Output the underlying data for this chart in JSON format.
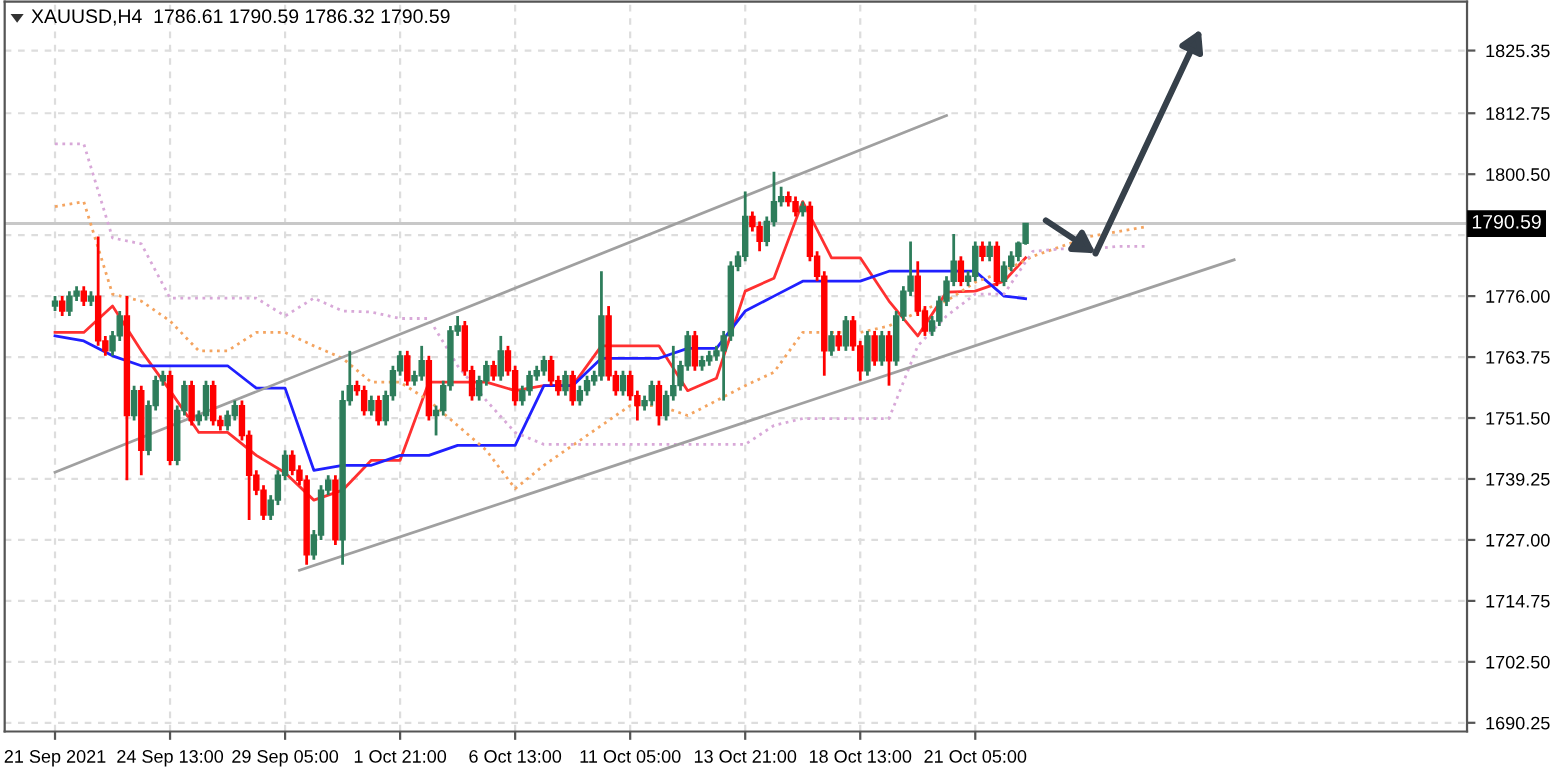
{
  "chart_data": {
    "type": "candlestick",
    "title": "XAUUSD,H4  1786.61 1790.59 1786.32 1790.59",
    "categories": [
      "21 Sep 2021",
      null,
      null,
      null,
      null,
      null,
      null,
      null,
      null,
      null,
      null,
      null,
      null,
      null,
      null,
      null,
      "24 Sep 13:00",
      null,
      null,
      null,
      null,
      null,
      null,
      null,
      null,
      null,
      null,
      null,
      null,
      null,
      null,
      null,
      "29 Sep 05:00",
      null,
      null,
      null,
      null,
      null,
      null,
      null,
      null,
      null,
      null,
      null,
      null,
      null,
      null,
      null,
      "1 Oct 21:00",
      null,
      null,
      null,
      null,
      null,
      null,
      null,
      null,
      null,
      null,
      null,
      null,
      null,
      null,
      null,
      "6 Oct 13:00",
      null,
      null,
      null,
      null,
      null,
      null,
      null,
      null,
      null,
      null,
      null,
      null,
      null,
      null,
      null,
      "11 Oct 05:00",
      null,
      null,
      null,
      null,
      null,
      null,
      null,
      null,
      null,
      null,
      null,
      null,
      null,
      null,
      null,
      "13 Oct 21:00",
      null,
      null,
      null,
      null,
      null,
      null,
      null,
      null,
      null,
      null,
      null,
      null,
      null,
      null,
      null,
      "18 Oct 13:00",
      null,
      null,
      null,
      null,
      null,
      null,
      null,
      null,
      null,
      null,
      null,
      null,
      null,
      null,
      null,
      "21 Oct 05:00",
      null,
      null,
      null,
      null,
      null,
      null,
      null,
      null,
      null,
      null,
      null,
      null,
      null,
      null,
      null,
      null,
      null,
      null,
      null,
      null,
      null,
      null,
      null,
      null,
      null,
      null,
      null,
      null,
      null,
      null,
      null,
      null,
      null,
      null,
      null,
      null,
      null,
      null,
      null,
      null,
      null,
      null,
      null,
      null,
      null,
      null,
      null,
      null,
      null,
      null,
      null,
      null,
      null,
      null,
      null,
      null,
      null,
      null,
      null,
      null,
      null,
      null,
      null,
      null,
      null,
      null,
      null,
      null
    ],
    "colors": [
      "#2e7d5b",
      "#ff0000",
      "#2e7d5b",
      "#2e7d5b",
      "#ff0000",
      "#2e7d5b",
      "#ff0000",
      "#ff0000",
      "#2e7d5b",
      "#2e7d5b",
      "#ff0000",
      "#2e7d5b",
      "#ff0000",
      "#2e7d5b",
      "#2e7d5b",
      "#2e7d5b",
      "#ff0000",
      "#2e7d5b",
      "#2e7d5b",
      "#ff0000",
      "#2e7d5b",
      "#2e7d5b",
      "#ff0000",
      "#ff0000",
      "#2e7d5b",
      "#2e7d5b",
      "#ff0000",
      "#ff0000",
      "#ff0000",
      "#ff0000",
      "#2e7d5b",
      "#2e7d5b",
      "#2e7d5b",
      "#ff0000",
      "#ff0000",
      "#ff0000",
      "#2e7d5b",
      "#2e7d5b",
      "#2e7d5b",
      "#ff0000",
      "#2e7d5b",
      "#2e7d5b",
      "#ff0000",
      "#ff0000",
      "#2e7d5b",
      "#ff0000",
      "#2e7d5b",
      "#2e7d5b",
      "#2e7d5b",
      "#ff0000",
      "#2e7d5b",
      "#2e7d5b",
      "#ff0000",
      "#2e7d5b",
      "#2e7d5b",
      "#2e7d5b",
      "#2e7d5b",
      "#ff0000",
      "#ff0000",
      "#2e7d5b",
      "#2e7d5b",
      "#ff0000",
      "#2e7d5b",
      "#ff0000",
      "#ff0000",
      "#2e7d5b",
      "#2e7d5b",
      "#2e7d5b",
      "#2e7d5b",
      "#ff0000",
      "#ff0000",
      "#2e7d5b",
      "#ff0000",
      "#2e7d5b",
      "#2e7d5b",
      "#2e7d5b",
      "#2e7d5b",
      "#ff0000",
      "#ff0000",
      "#2e7d5b",
      "#ff0000",
      "#ff0000",
      "#2e7d5b",
      "#2e7d5b",
      "#ff0000",
      "#2e7d5b",
      "#2e7d5b",
      "#2e7d5b",
      "#2e7d5b",
      "#ff0000",
      "#2e7d5b",
      "#2e7d5b",
      "#2e7d5b",
      "#2e7d5b",
      "#2e7d5b",
      "#2e7d5b",
      "#2e7d5b",
      "#ff0000",
      "#ff0000",
      "#2e7d5b",
      "#2e7d5b",
      "#2e7d5b",
      "#ff0000",
      "#ff0000",
      "#2e7d5b",
      "#ff0000",
      "#ff0000",
      "#ff0000",
      "#2e7d5b",
      "#ff0000",
      "#2e7d5b",
      "#ff0000",
      "#ff0000",
      "#2e7d5b",
      "#ff0000",
      "#2e7d5b",
      "#ff0000",
      "#2e7d5b",
      "#2e7d5b",
      "#2e7d5b",
      "#ff0000",
      "#ff0000",
      "#2e7d5b",
      "#2e7d5b",
      "#2e7d5b",
      "#2e7d5b",
      "#ff0000",
      "#2e7d5b",
      "#2e7d5b",
      "#ff0000",
      "#2e7d5b",
      "#ff0000",
      "#2e7d5b",
      "#2e7d5b",
      "#2e7d5b",
      "#2e7d5b",
      null,
      null,
      null,
      null,
      null,
      null,
      null,
      null,
      null,
      null,
      null,
      null,
      null,
      null,
      null,
      null,
      null,
      null,
      null,
      null,
      null,
      null,
      null,
      null,
      null,
      null,
      null,
      null,
      null,
      null,
      null,
      null,
      null,
      null,
      null,
      null,
      null,
      null,
      null,
      null,
      null,
      null,
      null,
      null,
      null,
      null,
      null,
      null,
      null,
      null,
      null,
      null,
      null,
      null,
      null,
      null,
      null,
      null,
      null,
      null,
      null
    ],
    "ohlc": [
      [
        1774,
        1776,
        1773,
        1775
      ],
      [
        1775,
        1776,
        1772,
        1773
      ],
      [
        1773,
        1777,
        1772,
        1776
      ],
      [
        1776,
        1778,
        1775,
        1777
      ],
      [
        1777,
        1778,
        1774,
        1775
      ],
      [
        1775,
        1777,
        1774,
        1776
      ],
      [
        1776,
        1788,
        1766,
        1767
      ],
      [
        1767,
        1768,
        1764,
        1765
      ],
      [
        1765,
        1769,
        1764,
        1768
      ],
      [
        1768,
        1773,
        1767,
        1772
      ],
      [
        1772,
        1776,
        1739,
        1752
      ],
      [
        1752,
        1758,
        1751,
        1757
      ],
      [
        1757,
        1758,
        1740,
        1745
      ],
      [
        1745,
        1755,
        1744,
        1754
      ],
      [
        1754,
        1760,
        1753,
        1759
      ],
      [
        1759,
        1761,
        1758,
        1760
      ],
      [
        1760,
        1761,
        1742,
        1743
      ],
      [
        1743,
        1754,
        1742,
        1753
      ],
      [
        1753,
        1759,
        1752,
        1758
      ],
      [
        1758,
        1759,
        1750,
        1751
      ],
      [
        1751,
        1753,
        1750,
        1752
      ],
      [
        1752,
        1759,
        1751,
        1758
      ],
      [
        1758,
        1759,
        1750,
        1751
      ],
      [
        1751,
        1752,
        1749,
        1750
      ],
      [
        1750,
        1753,
        1749,
        1752
      ],
      [
        1752,
        1755,
        1751,
        1754
      ],
      [
        1754,
        1755,
        1747,
        1748
      ],
      [
        1748,
        1749,
        1731,
        1740
      ],
      [
        1740,
        1741,
        1736,
        1737
      ],
      [
        1737,
        1738,
        1731,
        1732
      ],
      [
        1732,
        1736,
        1731,
        1735
      ],
      [
        1735,
        1741,
        1734,
        1740
      ],
      [
        1740,
        1745,
        1739,
        1744
      ],
      [
        1744,
        1745,
        1740,
        1741
      ],
      [
        1741,
        1742,
        1738,
        1739
      ],
      [
        1739,
        1740,
        1722,
        1724
      ],
      [
        1724,
        1729,
        1723,
        1728
      ],
      [
        1728,
        1738,
        1727,
        1737
      ],
      [
        1737,
        1740,
        1736,
        1739
      ],
      [
        1739,
        1740,
        1726,
        1727
      ],
      [
        1727,
        1757,
        1722,
        1755
      ],
      [
        1755,
        1765,
        1754,
        1758
      ],
      [
        1758,
        1759,
        1756,
        1757
      ],
      [
        1757,
        1758,
        1752,
        1753
      ],
      [
        1753,
        1756,
        1752,
        1755
      ],
      [
        1755,
        1756,
        1750,
        1751
      ],
      [
        1751,
        1757,
        1750,
        1756
      ],
      [
        1756,
        1762,
        1755,
        1761
      ],
      [
        1761,
        1765,
        1760,
        1764
      ],
      [
        1764,
        1765,
        1758,
        1759
      ],
      [
        1759,
        1761,
        1758,
        1760
      ],
      [
        1760,
        1766,
        1759,
        1763
      ],
      [
        1763,
        1764,
        1751,
        1752
      ],
      [
        1752,
        1754,
        1748,
        1753
      ],
      [
        1753,
        1759,
        1752,
        1758
      ],
      [
        1758,
        1770,
        1757,
        1769
      ],
      [
        1769,
        1772,
        1768,
        1770
      ],
      [
        1770,
        1771,
        1760,
        1761
      ],
      [
        1761,
        1762,
        1755,
        1756
      ],
      [
        1756,
        1760,
        1755,
        1759
      ],
      [
        1759,
        1763,
        1758,
        1762
      ],
      [
        1762,
        1763,
        1759,
        1760
      ],
      [
        1760,
        1768,
        1759,
        1765
      ],
      [
        1765,
        1766,
        1760,
        1761
      ],
      [
        1761,
        1762,
        1754,
        1755
      ],
      [
        1755,
        1758,
        1754,
        1757
      ],
      [
        1757,
        1761,
        1756,
        1760
      ],
      [
        1760,
        1762,
        1759,
        1761
      ],
      [
        1761,
        1764,
        1760,
        1763
      ],
      [
        1763,
        1764,
        1758,
        1759
      ],
      [
        1759,
        1760,
        1756,
        1757
      ],
      [
        1757,
        1761,
        1756,
        1760
      ],
      [
        1760,
        1761,
        1754,
        1755
      ],
      [
        1755,
        1758,
        1754,
        1757
      ],
      [
        1757,
        1760,
        1756,
        1759
      ],
      [
        1759,
        1761,
        1758,
        1760
      ],
      [
        1760,
        1781,
        1759,
        1772
      ],
      [
        1772,
        1774,
        1759,
        1760
      ],
      [
        1760,
        1761,
        1756,
        1757
      ],
      [
        1757,
        1761,
        1756,
        1760
      ],
      [
        1760,
        1761,
        1755,
        1756
      ],
      [
        1756,
        1757,
        1751,
        1754
      ],
      [
        1754,
        1756,
        1753,
        1755
      ],
      [
        1755,
        1759,
        1754,
        1758
      ],
      [
        1758,
        1759,
        1750,
        1752
      ],
      [
        1752,
        1757,
        1751,
        1756
      ],
      [
        1756,
        1766,
        1755,
        1758
      ],
      [
        1758,
        1763,
        1757,
        1762
      ],
      [
        1762,
        1769,
        1761,
        1768
      ],
      [
        1768,
        1769,
        1761,
        1762
      ],
      [
        1762,
        1764,
        1761,
        1763
      ],
      [
        1763,
        1765,
        1762,
        1764
      ],
      [
        1764,
        1766,
        1763,
        1765
      ],
      [
        1765,
        1769,
        1755,
        1768
      ],
      [
        1768,
        1783,
        1767,
        1782
      ],
      [
        1782,
        1785,
        1781,
        1784
      ],
      [
        1784,
        1797,
        1783,
        1792
      ],
      [
        1792,
        1793,
        1789,
        1790
      ],
      [
        1790,
        1791,
        1785,
        1787
      ],
      [
        1787,
        1792,
        1786,
        1791
      ],
      [
        1791,
        1801,
        1790,
        1795
      ],
      [
        1795,
        1798,
        1794,
        1796
      ],
      [
        1796,
        1797,
        1794,
        1795
      ],
      [
        1795,
        1796,
        1792,
        1793
      ],
      [
        1793,
        1795,
        1792,
        1794
      ],
      [
        1794,
        1795,
        1783,
        1784
      ],
      [
        1784,
        1785,
        1779,
        1780
      ],
      [
        1780,
        1781,
        1760,
        1765
      ],
      [
        1765,
        1769,
        1764,
        1768
      ],
      [
        1768,
        1769,
        1765,
        1766
      ],
      [
        1766,
        1772,
        1765,
        1771
      ],
      [
        1771,
        1772,
        1765,
        1766
      ],
      [
        1766,
        1767,
        1759,
        1761
      ],
      [
        1761,
        1769,
        1760,
        1768
      ],
      [
        1768,
        1769,
        1762,
        1763
      ],
      [
        1763,
        1769,
        1762,
        1768
      ],
      [
        1768,
        1769,
        1758,
        1763
      ],
      [
        1763,
        1773,
        1762,
        1772
      ],
      [
        1772,
        1778,
        1771,
        1777
      ],
      [
        1777,
        1787,
        1776,
        1780
      ],
      [
        1780,
        1783,
        1772,
        1773
      ],
      [
        1773,
        1774,
        1768,
        1769
      ],
      [
        1769,
        1772,
        1768,
        1771
      ],
      [
        1771,
        1776,
        1770,
        1775
      ],
      [
        1775,
        1780,
        1774,
        1779
      ],
      [
        1779,
        1788.5,
        1778,
        1783
      ],
      [
        1783,
        1784,
        1778,
        1779
      ],
      [
        1779,
        1781,
        1778,
        1780
      ],
      [
        1780,
        1787,
        1779,
        1786
      ],
      [
        1786,
        1787,
        1783,
        1784
      ],
      [
        1784,
        1787,
        1783,
        1786
      ],
      [
        1786,
        1787,
        1778,
        1779
      ],
      [
        1779,
        1783,
        1778,
        1782
      ],
      [
        1782,
        1785,
        1781,
        1784
      ],
      [
        1784,
        1787,
        1783,
        1786.61
      ],
      [
        1786.61,
        1790.59,
        1786.32,
        1790.59
      ],
      null,
      null,
      null,
      null,
      null,
      null,
      null,
      null,
      null,
      null,
      null,
      null,
      null,
      null,
      null,
      null,
      null,
      null,
      null,
      null,
      null,
      null,
      null,
      null,
      null,
      null,
      null,
      null,
      null,
      null,
      null,
      null,
      null,
      null,
      null,
      null,
      null,
      null,
      null,
      null,
      null,
      null,
      null,
      null,
      null,
      null,
      null,
      null,
      null,
      null,
      null,
      null,
      null,
      null,
      null,
      null,
      null,
      null,
      null,
      null,
      null
    ],
    "series": [
      {
        "type": "line",
        "color": "#ff3030",
        "values": [
          1768.7,
          null,
          null,
          null,
          1768.7,
          null,
          null,
          null,
          1774,
          null,
          null,
          null,
          1765,
          null,
          null,
          null,
          1757,
          null,
          null,
          null,
          1748.6,
          null,
          null,
          null,
          1748.6,
          null,
          null,
          null,
          1744,
          null,
          null,
          null,
          1740.5,
          null,
          null,
          null,
          1735,
          null,
          null,
          null,
          1737,
          null,
          null,
          null,
          1743,
          null,
          null,
          null,
          1743,
          null,
          null,
          null,
          1758.7,
          null,
          null,
          null,
          1758.7,
          null,
          null,
          null,
          1758.7,
          null,
          null,
          null,
          1757,
          null,
          null,
          null,
          1758,
          null,
          null,
          null,
          1758,
          null,
          null,
          null,
          1766,
          null,
          null,
          null,
          1766,
          null,
          null,
          null,
          1766,
          null,
          null,
          null,
          1757,
          null,
          null,
          null,
          1759.5,
          null,
          null,
          null,
          1777,
          null,
          null,
          null,
          1779.6,
          null,
          null,
          null,
          1795,
          null,
          null,
          null,
          1783.7,
          null,
          null,
          null,
          1783.7,
          null,
          null,
          null,
          1775,
          null,
          null,
          null,
          1768,
          null,
          null,
          null,
          1776.8,
          null,
          null,
          null,
          1777,
          null,
          null,
          null,
          1779,
          null,
          null,
          1783.7,
          null,
          null,
          null,
          null,
          null,
          null,
          null,
          null,
          null,
          null,
          null,
          null,
          null,
          null,
          null,
          null,
          null,
          null,
          null,
          null,
          null,
          null,
          null,
          null,
          null,
          null,
          null,
          null,
          null,
          null,
          null,
          null,
          null,
          null,
          null,
          null,
          null,
          null,
          null,
          null,
          null,
          null,
          null,
          null,
          null,
          null,
          null,
          null,
          null,
          null,
          null,
          null,
          null,
          null,
          null,
          null,
          null,
          null,
          null,
          null,
          null
        ]
      },
      {
        "type": "line",
        "color": "#2020ff",
        "values": [
          1768,
          null,
          null,
          null,
          1767,
          null,
          null,
          null,
          1764,
          null,
          null,
          null,
          1762,
          null,
          null,
          null,
          1762,
          null,
          null,
          null,
          1762,
          null,
          null,
          null,
          1762,
          null,
          null,
          null,
          1757.5,
          null,
          null,
          null,
          1757.5,
          null,
          null,
          null,
          1741,
          null,
          null,
          null,
          1742,
          null,
          null,
          null,
          1742,
          null,
          null,
          null,
          1744,
          null,
          null,
          null,
          1744,
          null,
          null,
          null,
          1746,
          null,
          null,
          null,
          1746,
          null,
          null,
          null,
          1746,
          null,
          null,
          null,
          1758,
          null,
          null,
          null,
          1758,
          null,
          null,
          null,
          1763.5,
          null,
          null,
          null,
          1763.5,
          null,
          null,
          null,
          1763.5,
          null,
          null,
          null,
          1765.5,
          null,
          null,
          null,
          1765.5,
          null,
          null,
          null,
          1773,
          null,
          null,
          null,
          1776,
          null,
          null,
          null,
          1779,
          null,
          null,
          null,
          1779,
          null,
          null,
          null,
          1779,
          null,
          null,
          null,
          1781,
          null,
          null,
          null,
          1781,
          null,
          null,
          null,
          1781,
          null,
          null,
          null,
          1781,
          null,
          null,
          null,
          1776,
          null,
          null,
          1775.5,
          null,
          null,
          null,
          null,
          null,
          null,
          null,
          null,
          null,
          null,
          null,
          null,
          null,
          null,
          null,
          null,
          null,
          null,
          null,
          null,
          null,
          null,
          null,
          null,
          null,
          null,
          null,
          null,
          null,
          null,
          null,
          null,
          null,
          null,
          null,
          null,
          null,
          null,
          null,
          null,
          null,
          null,
          null,
          null,
          null,
          null,
          null,
          null,
          null,
          null,
          null,
          null,
          null,
          null,
          null,
          null,
          null,
          null,
          null,
          null,
          null
        ]
      },
      {
        "type": "line",
        "color": "#f4a460",
        "line_style": "dotted",
        "values": [
          1794,
          null,
          null,
          null,
          1795,
          null,
          null,
          null,
          1776.4,
          null,
          null,
          null,
          1775,
          null,
          null,
          null,
          1771,
          null,
          null,
          null,
          1765,
          null,
          null,
          null,
          1765,
          null,
          null,
          null,
          1768.7,
          null,
          null,
          null,
          1768.7,
          null,
          null,
          null,
          1766,
          null,
          null,
          null,
          1763.5,
          null,
          null,
          null,
          1758.7,
          null,
          null,
          null,
          1758.7,
          null,
          null,
          null,
          1755,
          null,
          null,
          null,
          1750,
          null,
          null,
          null,
          1745,
          null,
          null,
          null,
          1737.3,
          null,
          null,
          null,
          1742,
          null,
          null,
          null,
          1746,
          null,
          null,
          null,
          1750,
          null,
          null,
          null,
          1754,
          null,
          null,
          null,
          1754,
          null,
          null,
          null,
          1752,
          null,
          null,
          null,
          1755,
          null,
          null,
          null,
          1758,
          null,
          null,
          null,
          1760.7,
          null,
          null,
          null,
          1768.7,
          null,
          null,
          null,
          1768.7,
          null,
          null,
          null,
          1768.7,
          null,
          null,
          null,
          1770,
          null,
          null,
          null,
          1772.8,
          null,
          null,
          null,
          1775,
          null,
          null,
          null,
          1778.8,
          null,
          null,
          null,
          1781,
          null,
          null,
          null,
          1784,
          null,
          null,
          null,
          1786,
          null,
          null,
          null,
          1788,
          null,
          null,
          null,
          1789,
          null,
          null,
          null,
          1790,
          null,
          null,
          null,
          null,
          null,
          null,
          null,
          null,
          null,
          null,
          null,
          null,
          null,
          null,
          null,
          null,
          null,
          null,
          null,
          null,
          null,
          null,
          null,
          null,
          null,
          null,
          null,
          null,
          null,
          null,
          null,
          null,
          null,
          null,
          null,
          null,
          null,
          null,
          null,
          null,
          null,
          null,
          null,
          null
        ]
      },
      {
        "type": "line",
        "color": "#d8a8d8",
        "line_style": "dotted",
        "values": [
          1806.6,
          null,
          null,
          null,
          1806.6,
          null,
          null,
          null,
          1787.7,
          null,
          null,
          null,
          1786.5,
          null,
          null,
          null,
          1775.6,
          null,
          null,
          null,
          1775.6,
          null,
          null,
          null,
          1775.6,
          null,
          null,
          null,
          1775.6,
          null,
          null,
          null,
          1772,
          null,
          null,
          null,
          1775.6,
          null,
          null,
          null,
          1773,
          null,
          null,
          null,
          1772.8,
          null,
          null,
          null,
          1771.5,
          null,
          null,
          null,
          1771.5,
          null,
          null,
          null,
          1762,
          null,
          null,
          null,
          1755,
          null,
          null,
          null,
          1748.6,
          null,
          null,
          null,
          1746.2,
          null,
          null,
          null,
          1746.2,
          null,
          null,
          null,
          1746.2,
          null,
          null,
          null,
          1746.2,
          null,
          null,
          null,
          1746.2,
          null,
          null,
          null,
          1746.2,
          null,
          null,
          null,
          1746.2,
          null,
          null,
          null,
          1746.2,
          null,
          null,
          null,
          1750,
          null,
          null,
          null,
          1751.4,
          null,
          null,
          null,
          1751.4,
          null,
          null,
          null,
          1751.4,
          null,
          null,
          null,
          1751.4,
          null,
          null,
          null,
          1766,
          null,
          null,
          null,
          1772,
          null,
          null,
          null,
          1776.4,
          null,
          null,
          null,
          1776.4,
          null,
          null,
          null,
          1785,
          null,
          null,
          null,
          1785.5,
          null,
          null,
          null,
          1785.5,
          null,
          null,
          null,
          1786,
          null,
          null,
          null,
          1786,
          null,
          null,
          null,
          null,
          null,
          null,
          null,
          null,
          null,
          null,
          null,
          null,
          null,
          null,
          null,
          null,
          null,
          null,
          null,
          null,
          null,
          null,
          null,
          null,
          null,
          null,
          null,
          null,
          null,
          null,
          null,
          null,
          null,
          null,
          null,
          null,
          null,
          null,
          null,
          null,
          null,
          null,
          null,
          null
        ]
      },
      {
        "type": "line",
        "color": "#a0a0a0",
        "values": [
          1740.6,
          null,
          null,
          null,
          null,
          null,
          null,
          null,
          null,
          null,
          null,
          null,
          null,
          null,
          null,
          null,
          null,
          null,
          null,
          null,
          null,
          null,
          null,
          null,
          null,
          null,
          null,
          null,
          null,
          null,
          null,
          null,
          null,
          null,
          null,
          null,
          null,
          null,
          null,
          null,
          null,
          null,
          null,
          null,
          null,
          null,
          null,
          null,
          null,
          null,
          null,
          null,
          null,
          null,
          null,
          null,
          null,
          null,
          null,
          null,
          null,
          null,
          null,
          null,
          null,
          null,
          null,
          null,
          null,
          null,
          null,
          null,
          null,
          null,
          null,
          null,
          null,
          null,
          null,
          null,
          null,
          null,
          null,
          null,
          null,
          null,
          null,
          null,
          null,
          null,
          null,
          null,
          null,
          null,
          null,
          null,
          null,
          null,
          null,
          null,
          null,
          null,
          null,
          null,
          null,
          null,
          null,
          null,
          null,
          null,
          null,
          null,
          null,
          null,
          null,
          null,
          null,
          null,
          null,
          null,
          null,
          null,
          null,
          null,
          1812.3,
          null,
          null,
          null,
          null,
          null,
          null,
          null,
          null,
          null,
          null,
          null,
          null,
          null,
          null,
          null,
          null,
          null,
          null,
          null,
          null,
          null,
          null,
          null,
          null,
          null,
          null,
          null,
          null,
          null,
          null,
          null,
          null,
          null,
          null,
          null,
          null,
          null,
          null,
          null,
          null,
          null,
          null,
          null,
          null,
          null,
          null,
          null,
          null,
          null,
          null,
          null,
          null,
          null,
          null,
          null,
          null,
          null,
          null,
          null,
          null,
          null,
          null,
          null,
          null,
          null,
          null,
          null,
          null,
          null,
          null,
          null,
          null
        ]
      },
      {
        "type": "line",
        "color": "#a0a0a0",
        "values": [
          null,
          null,
          null,
          null,
          null,
          null,
          null,
          null,
          null,
          null,
          null,
          null,
          null,
          null,
          null,
          null,
          null,
          null,
          null,
          null,
          null,
          null,
          null,
          null,
          null,
          null,
          null,
          null,
          null,
          null,
          null,
          null,
          null,
          null,
          1720.9,
          null,
          null,
          null,
          null,
          null,
          null,
          null,
          null,
          null,
          null,
          null,
          null,
          null,
          null,
          null,
          null,
          null,
          null,
          null,
          null,
          null,
          null,
          null,
          null,
          null,
          null,
          null,
          null,
          null,
          null,
          null,
          null,
          null,
          null,
          null,
          null,
          null,
          null,
          null,
          null,
          null,
          null,
          null,
          null,
          null,
          null,
          null,
          null,
          null,
          null,
          null,
          null,
          null,
          null,
          null,
          null,
          null,
          null,
          null,
          null,
          null,
          null,
          null,
          null,
          null,
          null,
          null,
          null,
          null,
          null,
          null,
          null,
          null,
          null,
          null,
          null,
          null,
          null,
          null,
          null,
          null,
          null,
          null,
          null,
          null,
          null,
          null,
          null,
          null,
          null,
          null,
          null,
          null,
          null,
          null,
          null,
          null,
          null,
          null,
          null,
          null,
          null,
          null,
          null,
          null,
          null,
          null,
          null,
          null,
          null,
          null,
          null,
          null,
          null,
          null,
          null,
          null,
          null,
          null,
          null,
          null,
          null,
          null,
          null,
          null,
          null,
          null,
          null,
          null,
          1783.3,
          null,
          null,
          null,
          null,
          null,
          null,
          null,
          null,
          null,
          null,
          null,
          null,
          null,
          null,
          null,
          null,
          null,
          null,
          null,
          null,
          null,
          null,
          null,
          null,
          null,
          null,
          null,
          null,
          null,
          null,
          null,
          null
        ]
      }
    ],
    "ref_lines": [
      {
        "axis": "y",
        "value": 1790.59,
        "label": "1790.59",
        "color": "#c8c8c8"
      }
    ],
    "ylim": [
      1688.5,
      1835.2
    ],
    "yticks": [
      1825.35,
      {
        "value": 1812.75,
        "label": "1812.75"
      },
      {
        "value": 1800.5,
        "label": "1800.50"
      },
      {
        "value": 1788.25,
        "label": null
      },
      {
        "value": 1776.0,
        "label": "1776.00"
      },
      {
        "value": 1763.75,
        "label": "1763.75"
      },
      {
        "value": 1751.5,
        "label": "1751.50"
      },
      {
        "value": 1739.25,
        "label": "1739.25"
      },
      {
        "value": 1727.0,
        "label": "1727.00"
      },
      {
        "value": 1714.75,
        "label": "1714.75"
      },
      {
        "value": 1702.5,
        "label": "1702.50"
      },
      {
        "value": 1690.25,
        "label": "1690.25"
      }
    ],
    "grid": true
  }
}
